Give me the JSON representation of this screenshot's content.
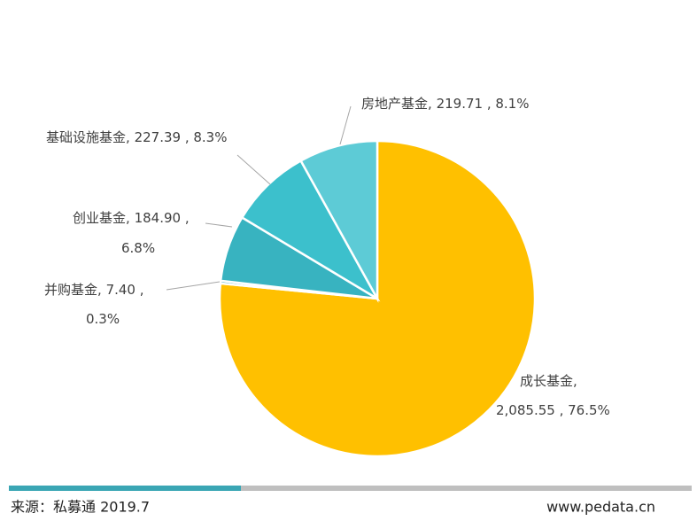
{
  "chart_data": {
    "type": "pie",
    "categories": [
      "成长基金",
      "并购基金",
      "创业基金",
      "基础设施基金",
      "房地产基金"
    ],
    "values": [
      2085.55,
      7.4,
      184.9,
      227.39,
      219.71
    ],
    "value_labels": [
      "2,085.55",
      "7.40",
      "184.90",
      "227.39",
      "219.71"
    ],
    "percents": [
      76.5,
      0.3,
      6.8,
      8.3,
      8.1
    ],
    "percent_labels": [
      "76.5%",
      "0.3%",
      "6.8%",
      "8.3%",
      "8.1%"
    ],
    "separators": [
      ", ",
      " , "
    ],
    "colors": [
      "#ffc000",
      "#41a9b6",
      "#38b3c0",
      "#3cc0cc",
      "#5dcbd6"
    ],
    "source": "来源：私募通 2019.7",
    "website": "www.pedata.cn"
  }
}
